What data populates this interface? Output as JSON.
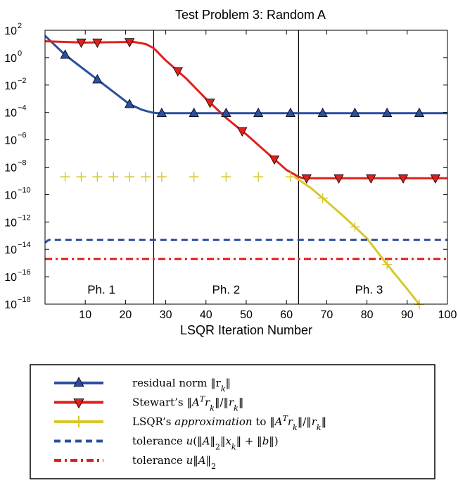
{
  "chart_data": {
    "type": "line",
    "title": "Test Problem 3: Random A",
    "xlabel": "LSQR Iteration Number",
    "ylabel": "",
    "xlim": [
      0,
      100
    ],
    "xticks": [
      10,
      20,
      30,
      40,
      50,
      60,
      70,
      80,
      90,
      100
    ],
    "ylim_exp": [
      -18,
      2
    ],
    "yscale": "log",
    "yticks": [
      {
        "base": "10",
        "exp": "2",
        "e": 2
      },
      {
        "base": "10",
        "exp": "0",
        "e": 0
      },
      {
        "base": "10",
        "exp": "−2",
        "e": -2
      },
      {
        "base": "10",
        "exp": "−4",
        "e": -4
      },
      {
        "base": "10",
        "exp": "−6",
        "e": -6
      },
      {
        "base": "10",
        "exp": "−8",
        "e": -8
      },
      {
        "base": "10",
        "exp": "−10",
        "e": -10
      },
      {
        "base": "10",
        "exp": "−12",
        "e": -12
      },
      {
        "base": "10",
        "exp": "−14",
        "e": -14
      },
      {
        "base": "10",
        "exp": "−16",
        "e": -16
      },
      {
        "base": "10",
        "exp": "−18",
        "e": -18
      }
    ],
    "phase_dividers": [
      27,
      63
    ],
    "phases": [
      {
        "label": "Ph. 1",
        "x": 14
      },
      {
        "label": "Ph. 2",
        "x": 45
      },
      {
        "label": "Ph. 3",
        "x": 80.5
      }
    ],
    "series": [
      {
        "key": "residual",
        "color": "#2b4fa0",
        "style": "solid",
        "marker": "triangle-up",
        "points_log10": [
          [
            0,
            1.6
          ],
          [
            5,
            0.2
          ],
          [
            13,
            -1.6
          ],
          [
            21,
            -3.4
          ],
          [
            24,
            -3.8
          ],
          [
            26.5,
            -4.0
          ],
          [
            28,
            -4.05
          ],
          [
            100,
            -4.05
          ]
        ],
        "markers_x": [
          5,
          13,
          21,
          29,
          37,
          45,
          53,
          61,
          69,
          77,
          85,
          93
        ]
      },
      {
        "key": "stewart",
        "color": "#e0201b",
        "style": "solid",
        "marker": "triangle-down",
        "points_log10": [
          [
            0,
            1.2
          ],
          [
            10,
            1.1
          ],
          [
            22,
            1.15
          ],
          [
            25,
            1.0
          ],
          [
            27,
            0.7
          ],
          [
            30,
            -0.2
          ],
          [
            35,
            -1.5
          ],
          [
            40,
            -3.0
          ],
          [
            45,
            -4.4
          ],
          [
            50,
            -5.6
          ],
          [
            55,
            -6.9
          ],
          [
            60,
            -8.2
          ],
          [
            63,
            -8.7
          ],
          [
            64,
            -8.8
          ],
          [
            100,
            -8.8
          ]
        ],
        "markers_x": [
          9,
          13,
          21,
          33,
          41,
          49,
          57,
          65,
          73,
          81,
          89,
          97
        ]
      },
      {
        "key": "lsqr_approx",
        "color": "#d8c82a",
        "style": "solid",
        "marker": "plus",
        "points_log10": [
          [
            62,
            -8.7
          ],
          [
            66,
            -9.5
          ],
          [
            70,
            -10.5
          ],
          [
            75,
            -11.8
          ],
          [
            80,
            -13.2
          ],
          [
            85,
            -15.1
          ],
          [
            90,
            -16.9
          ],
          [
            93.5,
            -18.2
          ]
        ],
        "markers_x": [
          5,
          9,
          13,
          17,
          21,
          25,
          29,
          37,
          45,
          53,
          61,
          69,
          77,
          85,
          93
        ]
      },
      {
        "key": "tol_dashed",
        "color": "#2b4fa0",
        "style": "dashed",
        "marker": "none",
        "points_log10": [
          [
            0,
            -13.5
          ],
          [
            1,
            -13.3
          ],
          [
            100,
            -13.3
          ]
        ],
        "markers_x": []
      },
      {
        "key": "tol_dashdot",
        "color": "#e0201b",
        "style": "dashdot",
        "marker": "none",
        "points_log10": [
          [
            0,
            -14.7
          ],
          [
            100,
            -14.7
          ]
        ],
        "markers_x": []
      }
    ]
  },
  "legend": {
    "items": [
      {
        "key": "residual",
        "parts": [
          {
            "t": "residual norm "
          },
          {
            "t": "‖r",
            "i": false
          },
          {
            "t": "k",
            "sub": true,
            "i": true
          },
          {
            "t": "‖"
          }
        ]
      },
      {
        "key": "stewart",
        "parts": [
          {
            "t": "Stewart’s ‖"
          },
          {
            "t": "A",
            "i": true
          },
          {
            "t": "T",
            "sup": true,
            "i": true
          },
          {
            "t": "r",
            "i": true
          },
          {
            "t": "k",
            "sub": true,
            "i": true
          },
          {
            "t": "‖/‖"
          },
          {
            "t": "r",
            "i": true
          },
          {
            "t": "k",
            "sub": true,
            "i": true
          },
          {
            "t": "‖"
          }
        ]
      },
      {
        "key": "lsqr_approx",
        "parts": [
          {
            "t": "LSQR’s "
          },
          {
            "t": "approximation",
            "i": true
          },
          {
            "t": " to ‖"
          },
          {
            "t": "A",
            "i": true
          },
          {
            "t": "T",
            "sup": true,
            "i": true
          },
          {
            "t": "r",
            "i": true
          },
          {
            "t": "k",
            "sub": true,
            "i": true
          },
          {
            "t": "‖/‖"
          },
          {
            "t": "r",
            "i": true
          },
          {
            "t": "k",
            "sub": true,
            "i": true
          },
          {
            "t": "‖"
          }
        ]
      },
      {
        "key": "tol_dashed",
        "parts": [
          {
            "t": "tolerance "
          },
          {
            "t": "u",
            "i": true
          },
          {
            "t": "(‖"
          },
          {
            "t": "A",
            "i": true
          },
          {
            "t": "‖"
          },
          {
            "t": "2",
            "sub": true
          },
          {
            "t": "‖"
          },
          {
            "t": "x",
            "i": true
          },
          {
            "t": "k",
            "sub": true,
            "i": true
          },
          {
            "t": "‖ + ‖"
          },
          {
            "t": "b",
            "i": true
          },
          {
            "t": "‖)"
          }
        ]
      },
      {
        "key": "tol_dashdot",
        "parts": [
          {
            "t": "tolerance "
          },
          {
            "t": "u",
            "i": true
          },
          {
            "t": "‖"
          },
          {
            "t": "A",
            "i": true
          },
          {
            "t": "‖"
          },
          {
            "t": "2",
            "sub": true
          }
        ]
      }
    ]
  }
}
